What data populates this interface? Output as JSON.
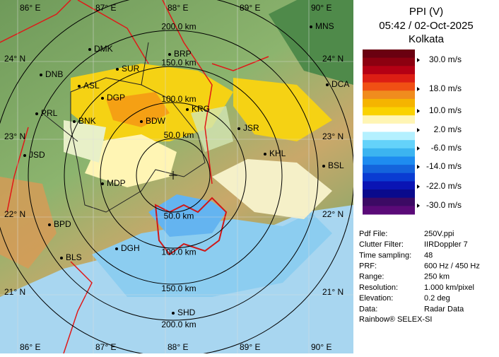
{
  "panel": {
    "title": "PPI (V)",
    "time": "05:42 / 02-Oct-2025",
    "site": "Kolkata",
    "legend": {
      "colors": [
        "#6a0010",
        "#8c0010",
        "#b40014",
        "#dc1e14",
        "#f05014",
        "#f08c1e",
        "#f5b400",
        "#fad200",
        "#fff5b4",
        "#ffffff",
        "#b4f0ff",
        "#64d2fa",
        "#3cb4f0",
        "#1e8cf0",
        "#1464dc",
        "#0a3cd2",
        "#0a14b4",
        "#0a0a8c",
        "#3c0a64",
        "#5a0a78"
      ],
      "labels": [
        "30.0 m/s",
        "18.0 m/s",
        "10.0 m/s",
        "2.0 m/s",
        "-6.0 m/s",
        "-14.0 m/s",
        "-22.0 m/s",
        "-30.0 m/s"
      ]
    },
    "info": [
      [
        "Pdf File:",
        "250V.ppi"
      ],
      [
        "Clutter Filter:",
        "IIRDoppler 7"
      ],
      [
        "Time sampling:",
        "48"
      ],
      [
        "PRF:",
        "600 Hz / 450 Hz"
      ],
      [
        "Range:",
        "250 km"
      ],
      [
        "Resolution:",
        "1.000 km/pixel"
      ],
      [
        "Elevation:",
        "0.2 deg"
      ],
      [
        "Data:",
        "Radar Data"
      ]
    ],
    "footer": "Rainbow® SELEX-SI"
  },
  "map": {
    "lon_labels": [
      "86° E",
      "87° E",
      "88° E",
      "89° E",
      "90° E"
    ],
    "lat_labels": [
      "24° N",
      "23° N",
      "22° N",
      "21° N"
    ],
    "range_labels": [
      "50.0 km",
      "100.0 km",
      "150.0 km",
      "200.0 km"
    ],
    "stations": [
      "MNS",
      "DMK",
      "BRP",
      "DNB",
      "SUR",
      "ASL",
      "DGP",
      "DCA",
      "KRG",
      "PRL",
      "BNK",
      "BDW",
      "JSR",
      "JSD",
      "KHL",
      "BSL",
      "MDP",
      "BPD",
      "DGH",
      "BLS",
      "SHD"
    ]
  }
}
